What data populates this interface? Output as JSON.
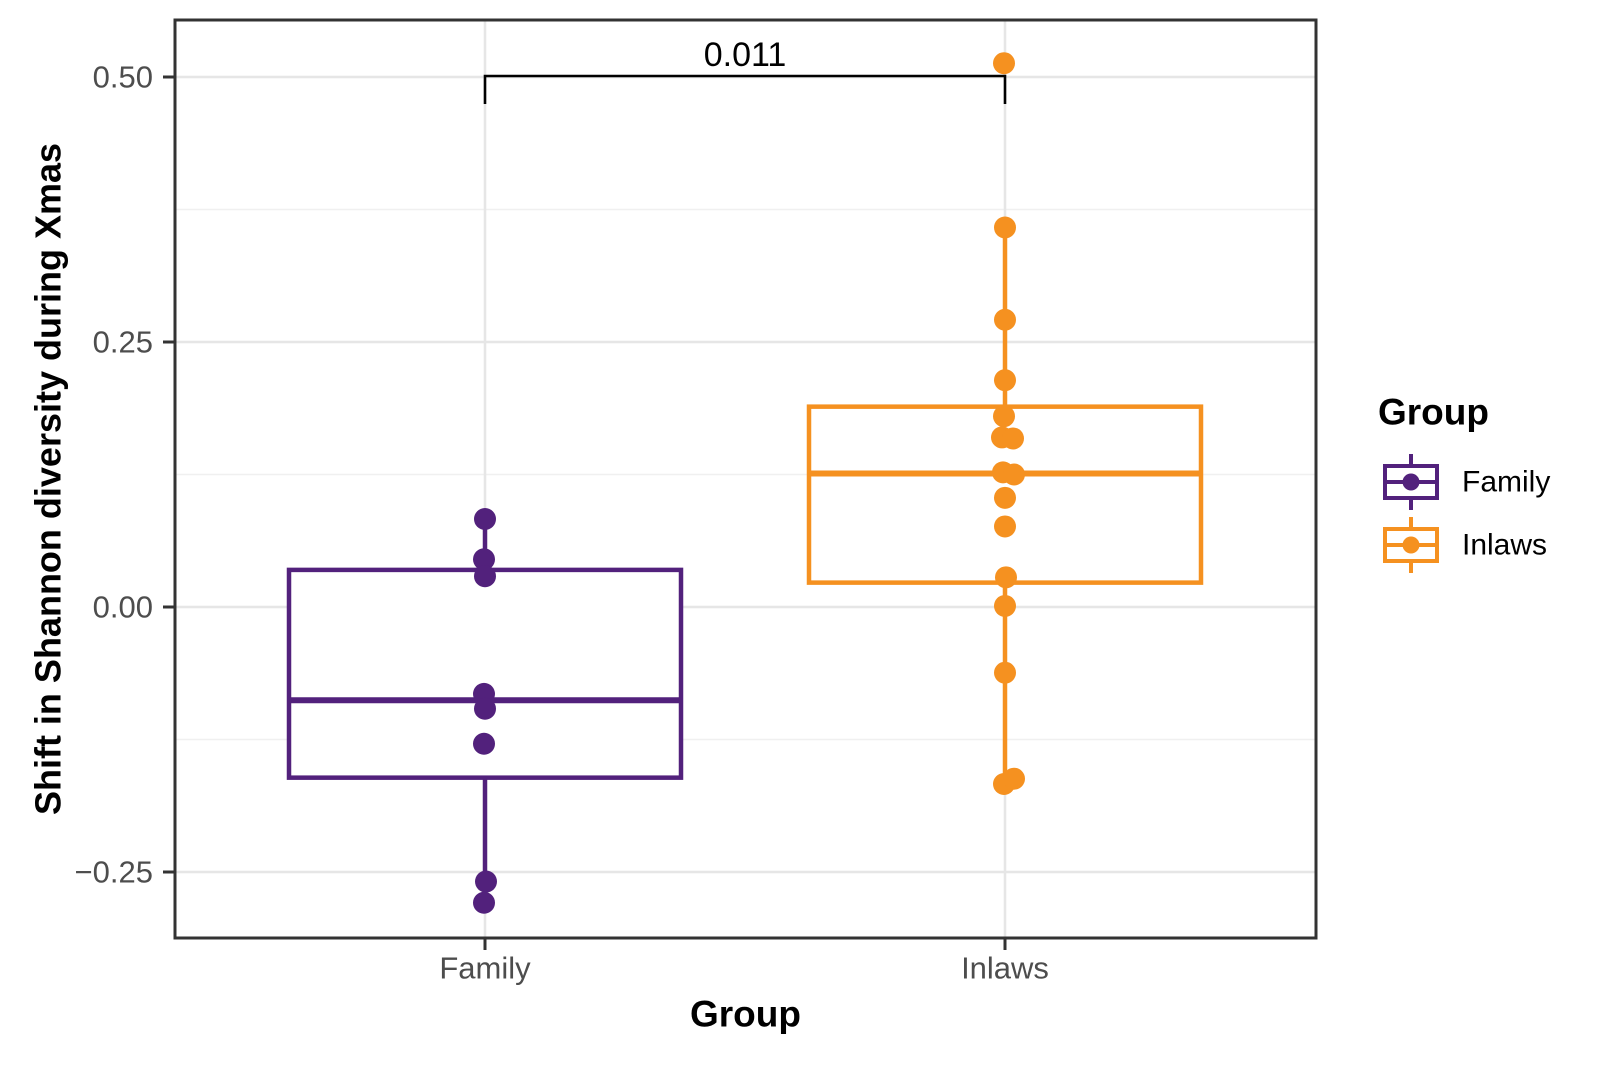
{
  "figure": {
    "colors": {
      "background": "#ffffff",
      "panel_fill": "#ffffff",
      "panel_border": "#333333",
      "grid_major": "#e6e6e6",
      "grid_minor": "#f0f0f0",
      "tick_mark": "#333333",
      "axis_text": "#4d4d4d",
      "title_text": "#000000",
      "significance_text": "#000000",
      "bracket": "#000000"
    }
  },
  "chart_data": {
    "type": "boxplot",
    "title": "",
    "xlabel": "Group",
    "ylabel": "Shift in Shannon diversity during Xmas",
    "categories": [
      "Family",
      "Inlaws"
    ],
    "grid": true,
    "legend_position": "right",
    "y_axis": {
      "range": [
        -0.31,
        0.55
      ],
      "ticks": [
        {
          "label": "0.50",
          "value": 0.5
        },
        {
          "label": "0.25",
          "value": 0.25
        },
        {
          "label": "0.00",
          "value": 0.0
        },
        {
          "label": "−0.25",
          "value": -0.25
        }
      ],
      "minor_ticks": [
        0.375,
        0.125,
        -0.125
      ]
    },
    "series": [
      {
        "name": "Family",
        "color": "#52217C",
        "box": {
          "q1": -0.161,
          "median": -0.088,
          "q3": 0.035,
          "whisker_low": -0.259,
          "whisker_high": 0.083
        },
        "points": [
          {
            "v": 0.083,
            "dx": 0
          },
          {
            "v": 0.045,
            "dx": -1
          },
          {
            "v": 0.029,
            "dx": 0
          },
          {
            "v": -0.082,
            "dx": -1
          },
          {
            "v": -0.096,
            "dx": 0
          },
          {
            "v": -0.129,
            "dx": -1
          },
          {
            "v": -0.259,
            "dx": 1
          },
          {
            "v": -0.279,
            "dx": -1
          }
        ]
      },
      {
        "name": "Inlaws",
        "color": "#F59120",
        "box": {
          "q1": 0.023,
          "median": 0.126,
          "q3": 0.189,
          "whisker_low": -0.16,
          "whisker_high": 0.358
        },
        "points": [
          {
            "v": 0.513,
            "dx": -1
          },
          {
            "v": 0.358,
            "dx": 0
          },
          {
            "v": 0.271,
            "dx": 0
          },
          {
            "v": 0.214,
            "dx": 0
          },
          {
            "v": 0.18,
            "dx": -1
          },
          {
            "v": 0.16,
            "dx": -3
          },
          {
            "v": 0.159,
            "dx": 8
          },
          {
            "v": 0.127,
            "dx": -2
          },
          {
            "v": 0.125,
            "dx": 9
          },
          {
            "v": 0.103,
            "dx": 0
          },
          {
            "v": 0.076,
            "dx": 0
          },
          {
            "v": 0.028,
            "dx": 1
          },
          {
            "v": 0.001,
            "dx": 0
          },
          {
            "v": -0.062,
            "dx": 0
          },
          {
            "v": -0.167,
            "dx": -1
          },
          {
            "v": -0.162,
            "dx": 9
          }
        ]
      }
    ],
    "significance": {
      "label": "0.011",
      "connects": [
        "Family",
        "Inlaws"
      ]
    },
    "legend": {
      "title": "Group"
    }
  }
}
